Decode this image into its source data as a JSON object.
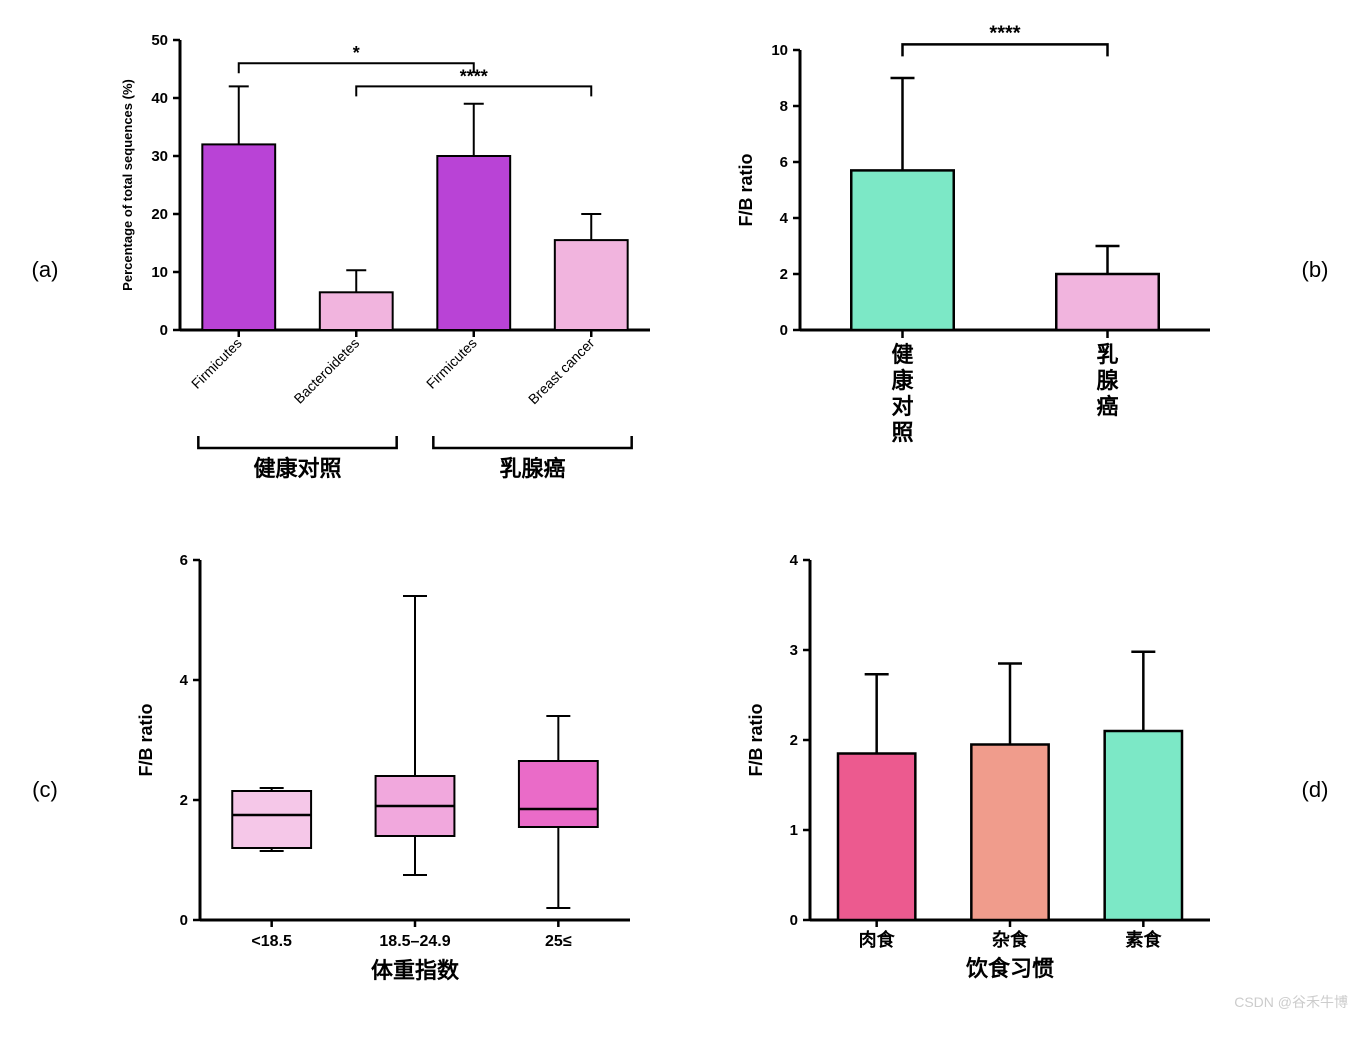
{
  "labels": {
    "a": "(a)",
    "b": "(b)",
    "c": "(c)",
    "d": "(d)"
  },
  "watermark": "CSDN @谷禾牛博",
  "a": {
    "type": "bar",
    "ylabel": "Percentage of total sequences (%)",
    "ylim": [
      0,
      50
    ],
    "ytick_step": 10,
    "bars": [
      {
        "label": "Firmicutes",
        "value": 32,
        "err": 10,
        "color": "#b943d6"
      },
      {
        "label": "Bacteroidetes",
        "value": 6.5,
        "err": 3.8,
        "color": "#f1b4de"
      },
      {
        "label": "Firmicutes",
        "value": 30,
        "err": 9,
        "color": "#b943d6"
      },
      {
        "label": "Breast cancer",
        "value": 15.5,
        "err": 4.5,
        "color": "#f1b4de"
      }
    ],
    "groups": [
      {
        "label": "健康对照",
        "span": [
          0,
          1
        ]
      },
      {
        "label": "乳腺癌",
        "span": [
          2,
          3
        ]
      }
    ],
    "sig": [
      {
        "from": 0,
        "to": 2,
        "y": 46,
        "text": "*"
      },
      {
        "from": 1,
        "to": 3,
        "y": 42,
        "text": "****"
      }
    ],
    "axis_color": "#000",
    "bar_width": 0.62,
    "label_fontsize": 14,
    "group_fontsize": 22,
    "ylabel_fontsize": 13
  },
  "b": {
    "type": "bar",
    "ylabel": "F/B ratio",
    "ylim": [
      0,
      10
    ],
    "ytick_step": 2,
    "bars": [
      {
        "label": "健康对照",
        "value": 5.7,
        "err": 3.3,
        "color": "#7ce8c6"
      },
      {
        "label": "乳腺癌",
        "value": 2.0,
        "err": 1.0,
        "color": "#f1b4de"
      }
    ],
    "sig": [
      {
        "from": 0,
        "to": 1,
        "y": 10.2,
        "text": "****"
      }
    ],
    "axis_color": "#000",
    "bar_width": 0.5,
    "label_fontsize": 22,
    "ylabel_fontsize": 18,
    "vertical_labels": true
  },
  "c": {
    "type": "boxplot",
    "ylabel": "F/B ratio",
    "xlabel": "体重指数",
    "ylim": [
      0,
      6
    ],
    "ytick_step": 2,
    "boxes": [
      {
        "label": "<18.5",
        "min": 1.15,
        "q1": 1.2,
        "med": 1.75,
        "q3": 2.15,
        "max": 2.2,
        "color": "#f5c7e8"
      },
      {
        "label": "18.5–24.9",
        "min": 0.75,
        "q1": 1.4,
        "med": 1.9,
        "q3": 2.4,
        "max": 5.4,
        "color": "#f1a8dd"
      },
      {
        "label": "25≤",
        "min": 0.2,
        "q1": 1.55,
        "med": 1.85,
        "q3": 2.65,
        "max": 3.4,
        "color": "#ea6bc8"
      }
    ],
    "axis_color": "#000",
    "box_width": 0.55,
    "label_fontsize": 16,
    "xlabel_fontsize": 22,
    "ylabel_fontsize": 18
  },
  "d": {
    "type": "bar",
    "ylabel": "F/B ratio",
    "xlabel": "饮食习惯",
    "ylim": [
      0,
      4
    ],
    "ytick_step": 1,
    "bars": [
      {
        "label": "肉食",
        "value": 1.85,
        "err": 0.88,
        "color": "#ec5a8f"
      },
      {
        "label": "杂食",
        "value": 1.95,
        "err": 0.9,
        "color": "#f09c8c"
      },
      {
        "label": "素食",
        "value": 2.1,
        "err": 0.88,
        "color": "#7ce8c6"
      }
    ],
    "axis_color": "#000",
    "bar_width": 0.58,
    "label_fontsize": 18,
    "xlabel_fontsize": 22,
    "ylabel_fontsize": 18
  }
}
